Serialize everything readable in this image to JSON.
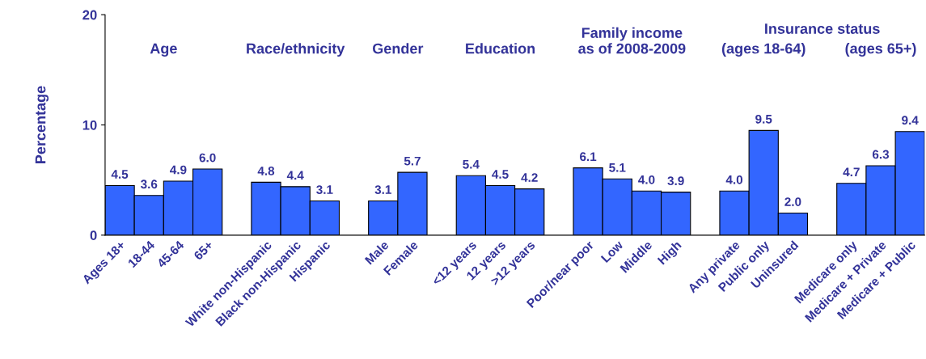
{
  "chart_data": {
    "type": "bar",
    "ylabel": "Percentage",
    "categories": [
      "Ages 18+",
      "18-44",
      "45-64",
      "65+",
      null,
      "White non-Hispanic",
      "Black non-Hispanic",
      "Hispanic",
      null,
      "Male",
      "Female",
      null,
      "<12 years",
      "12 years",
      ">12 years",
      null,
      "Poor/near poor",
      "Low",
      "Middle",
      "High",
      null,
      "Any private",
      "Public only",
      "Uninsured",
      null,
      "Medicare only",
      "Medicare + Private",
      "Medicare + Public"
    ],
    "values": [
      4.5,
      3.6,
      4.9,
      6.0,
      null,
      4.8,
      4.4,
      3.1,
      null,
      3.1,
      5.7,
      null,
      5.4,
      4.5,
      4.2,
      null,
      6.1,
      5.1,
      4.0,
      3.9,
      null,
      4.0,
      9.5,
      2.0,
      null,
      4.7,
      6.3,
      9.4
    ],
    "value_labels": [
      "4.5",
      "3.6",
      "4.9",
      "6.0",
      null,
      "4.8",
      "4.4",
      "3.1",
      null,
      "3.1",
      "5.7",
      null,
      "5.4",
      "4.5",
      "4.2",
      null,
      "6.1",
      "5.1",
      "4.0",
      "3.9",
      null,
      "4.0",
      "9.5",
      "2.0",
      null,
      "4.7",
      "6.3",
      "9.4"
    ],
    "color": "#3366ff",
    "ylim": [
      0,
      20
    ],
    "yticks": [
      0,
      10,
      20
    ],
    "grid": false,
    "legend": false,
    "annotations": [
      "Age",
      "Race/ethnicity",
      "Gender",
      "Education",
      "Family income\nas of 2008-2009",
      "Insurance status",
      "(ages 18-64)",
      "(ages 65+)"
    ]
  }
}
